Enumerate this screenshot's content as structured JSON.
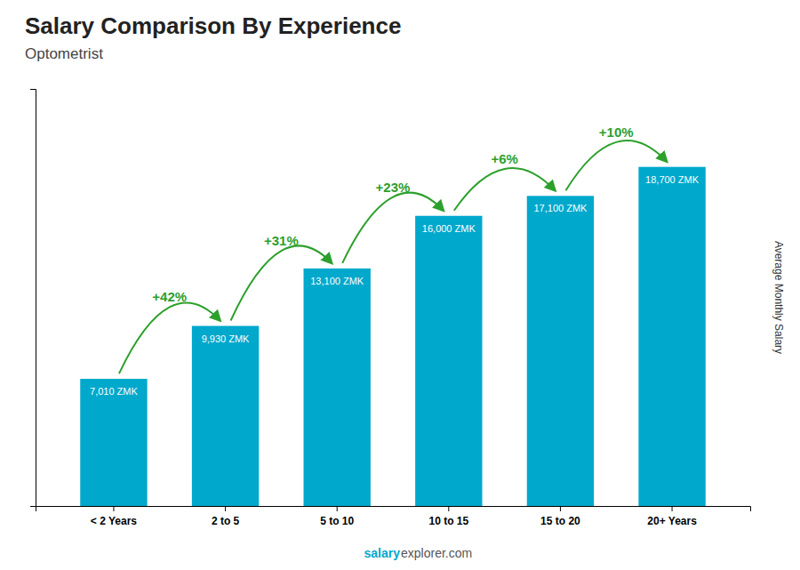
{
  "chart_data": {
    "type": "bar",
    "title": "Salary Comparison By Experience",
    "subtitle": "Optometrist",
    "ylabel": "Average Monthly Salary",
    "categories": [
      "< 2 Years",
      "2 to 5",
      "5 to 10",
      "10 to 15",
      "15 to 20",
      "20+ Years"
    ],
    "values": [
      7010,
      9930,
      13100,
      16000,
      17100,
      18700
    ],
    "value_labels": [
      "7,010 ZMK",
      "9,930 ZMK",
      "13,100 ZMK",
      "16,000 ZMK",
      "17,100 ZMK",
      "18,700 ZMK"
    ],
    "data_labels": true,
    "color": "#00a8cc",
    "ylim": [
      0,
      23000
    ],
    "tick_labels": "x",
    "grid": false,
    "annotations": [
      {
        "text": "+42%",
        "from": "< 2 Years",
        "to": "2 to 5"
      },
      {
        "text": "+31%",
        "from": "2 to 5",
        "to": "5 to 10"
      },
      {
        "text": "+23%",
        "from": "5 to 10",
        "to": "10 to 15"
      },
      {
        "text": "+6%",
        "from": "10 to 15",
        "to": "15 to 20"
      },
      {
        "text": "+10%",
        "from": "15 to 20",
        "to": "20+ Years"
      }
    ],
    "watermark": [
      "salary",
      "explorer.com"
    ]
  }
}
